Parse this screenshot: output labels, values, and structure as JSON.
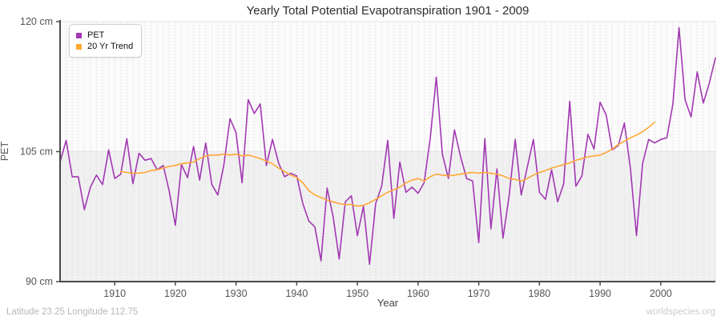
{
  "title": "Yearly Total Potential Evapotranspiration 1901 - 2009",
  "axes": {
    "y_title": "PET",
    "x_title": "Year"
  },
  "legend": {
    "items": [
      {
        "label": "PET",
        "color": "#A238B2"
      },
      {
        "label": "20 Yr Trend",
        "color": "#FFA733"
      }
    ]
  },
  "footer": {
    "location": "Latitude 23.25 Longitude 112.75",
    "watermark": "worldspecies.org"
  },
  "colors": {
    "pet_line": "#A238B2",
    "trend_line": "#FFA733",
    "plot_bg": "#fbfbfb",
    "band_bg": "#f0f0f1",
    "grid": "#e2e2e6",
    "band_line": "#e3e3e3",
    "border": "#e5e5e5",
    "axis": "#4a4a4a",
    "tick_text": "#555555"
  },
  "chart_data": {
    "type": "line",
    "title": "Yearly Total Potential Evapotranspiration 1901 - 2009",
    "xlabel": "Year",
    "ylabel": "PET",
    "xlim": [
      1901,
      2009
    ],
    "ylim": [
      90,
      120
    ],
    "grid": "vertical-dashed-every-year",
    "legend_position": "top-left",
    "band_below": 105,
    "y_ticks": [
      {
        "value": 120,
        "label": "120 cm"
      },
      {
        "value": 105,
        "label": "105 cm"
      },
      {
        "value": 90,
        "label": "90 cm"
      }
    ],
    "x_ticks": [
      1910,
      1920,
      1930,
      1940,
      1950,
      1960,
      1970,
      1980,
      1990,
      2000
    ],
    "series": [
      {
        "name": "PET",
        "color": "#A238B2",
        "x_start": 1901,
        "values": [
          103.8,
          106.3,
          102.1,
          102.1,
          98.3,
          100.9,
          102.3,
          101.2,
          105.2,
          101.9,
          102.4,
          106.5,
          101.3,
          104.8,
          104.0,
          104.2,
          102.9,
          103.4,
          100.4,
          96.5,
          103.5,
          102.0,
          105.6,
          101.7,
          106.0,
          101.2,
          100.0,
          103.5,
          108.8,
          107.2,
          101.4,
          111.0,
          109.4,
          110.5,
          103.4,
          106.4,
          103.7,
          102.1,
          102.5,
          102.2,
          99.0,
          97.0,
          96.3,
          92.4,
          100.8,
          97.5,
          92.6,
          99.2,
          99.9,
          95.3,
          98.7,
          92.0,
          99.0,
          101.0,
          106.3,
          97.3,
          103.8,
          100.3,
          100.9,
          100.2,
          101.4,
          106.5,
          113.6,
          104.7,
          101.9,
          107.5,
          104.4,
          101.9,
          101.6,
          94.5,
          106.5,
          96.1,
          103.0,
          95.0,
          99.9,
          106.4,
          100.0,
          103.2,
          106.4,
          100.3,
          99.5,
          102.9,
          99.2,
          101.3,
          110.8,
          101.0,
          102.2,
          107.0,
          105.3,
          110.7,
          109.2,
          105.2,
          105.7,
          108.3,
          103.0,
          95.3,
          103.6,
          106.4,
          106.0,
          106.4,
          106.6,
          110.5,
          119.3,
          111.0,
          109.0,
          114.2,
          110.6,
          112.9,
          115.8
        ]
      },
      {
        "name": "20 Yr Trend",
        "color": "#FFA733",
        "x_start": 1911,
        "values": [
          102.7,
          102.6,
          102.5,
          102.5,
          102.6,
          102.8,
          102.9,
          103.1,
          103.3,
          103.4,
          103.6,
          103.7,
          103.8,
          104.2,
          104.5,
          104.6,
          104.6,
          104.7,
          104.6,
          104.7,
          104.5,
          104.6,
          104.4,
          104.2,
          103.9,
          103.6,
          103.1,
          102.7,
          102.3,
          102.0,
          101.4,
          100.5,
          100.0,
          99.7,
          99.4,
          99.2,
          99.0,
          98.9,
          98.9,
          98.7,
          98.8,
          99.1,
          99.5,
          99.9,
          100.3,
          100.6,
          100.9,
          101.4,
          101.7,
          101.9,
          101.6,
          102.1,
          102.4,
          102.3,
          102.2,
          102.3,
          102.4,
          102.5,
          102.6,
          102.5,
          102.6,
          102.5,
          102.4,
          102.2,
          101.9,
          101.8,
          101.6,
          101.9,
          102.3,
          102.6,
          102.8,
          103.1,
          103.3,
          103.5,
          103.7,
          104.0,
          104.2,
          104.4,
          104.5,
          104.6,
          104.9,
          105.3,
          105.8,
          106.2,
          106.6,
          106.9,
          107.3,
          107.8,
          108.4
        ]
      }
    ]
  }
}
